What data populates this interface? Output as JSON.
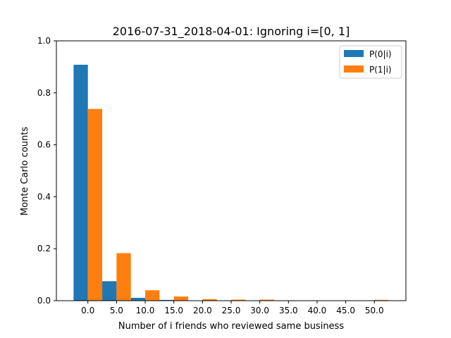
{
  "chart_data": {
    "type": "bar",
    "title": "2016-07-31_2018-04-01: Ignoring i=[0, 1]",
    "xlabel": "Number of i friends who reviewed same business",
    "ylabel": "Monte Carlo counts",
    "ylim": [
      0,
      1.0
    ],
    "xlim": [
      -5.5,
      55.5
    ],
    "grid": false,
    "legend_position": "top-right",
    "bar_width": 2.5,
    "x_ticks": [
      0,
      5,
      10,
      15,
      20,
      25,
      30,
      35,
      40,
      45,
      50
    ],
    "x_tick_labels": [
      "0.0",
      "5.0",
      "10.0",
      "15.0",
      "20.0",
      "25.0",
      "30.0",
      "35.0",
      "40.0",
      "45.0",
      "50.0"
    ],
    "y_ticks": [
      0,
      0.2,
      0.4,
      0.6,
      0.8,
      1.0
    ],
    "y_tick_labels": [
      "0.0",
      "0.2",
      "0.4",
      "0.6",
      "0.8",
      "1.0"
    ],
    "series": [
      {
        "name": "P(0|i)",
        "color": "#1f77b4",
        "x": [
          0,
          5,
          10,
          15,
          20,
          25,
          30,
          35,
          40,
          45,
          50
        ],
        "values": [
          0.908,
          0.075,
          0.011,
          0.003,
          0.001,
          0.0005,
          0.0003,
          0.0002,
          0.0001,
          0.0001,
          0.0001
        ]
      },
      {
        "name": "P(1|i)",
        "color": "#ff7f0e",
        "x": [
          0,
          5,
          10,
          15,
          20,
          25,
          30,
          35,
          40,
          45,
          50
        ],
        "values": [
          0.738,
          0.183,
          0.04,
          0.016,
          0.006,
          0.004,
          0.004,
          0.001,
          0.001,
          0.001,
          0.003
        ]
      }
    ]
  }
}
